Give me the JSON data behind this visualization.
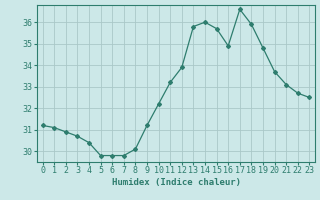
{
  "x": [
    0,
    1,
    2,
    3,
    4,
    5,
    6,
    7,
    8,
    9,
    10,
    11,
    12,
    13,
    14,
    15,
    16,
    17,
    18,
    19,
    20,
    21,
    22,
    23
  ],
  "y": [
    31.2,
    31.1,
    30.9,
    30.7,
    30.4,
    29.8,
    29.8,
    29.8,
    30.1,
    31.2,
    32.2,
    33.2,
    33.9,
    35.8,
    36.0,
    35.7,
    34.9,
    36.6,
    35.9,
    34.8,
    33.7,
    33.1,
    32.7,
    32.5
  ],
  "line_color": "#2e7d6e",
  "marker": "D",
  "bg_color": "#cce8e8",
  "grid_color": "#aac8c8",
  "xlabel": "Humidex (Indice chaleur)",
  "xlim": [
    -0.5,
    23.5
  ],
  "ylim": [
    29.5,
    36.8
  ],
  "yticks": [
    30,
    31,
    32,
    33,
    34,
    35,
    36
  ],
  "xticks": [
    0,
    1,
    2,
    3,
    4,
    5,
    6,
    7,
    8,
    9,
    10,
    11,
    12,
    13,
    14,
    15,
    16,
    17,
    18,
    19,
    20,
    21,
    22,
    23
  ],
  "xlabel_fontsize": 6.5,
  "tick_fontsize": 6
}
